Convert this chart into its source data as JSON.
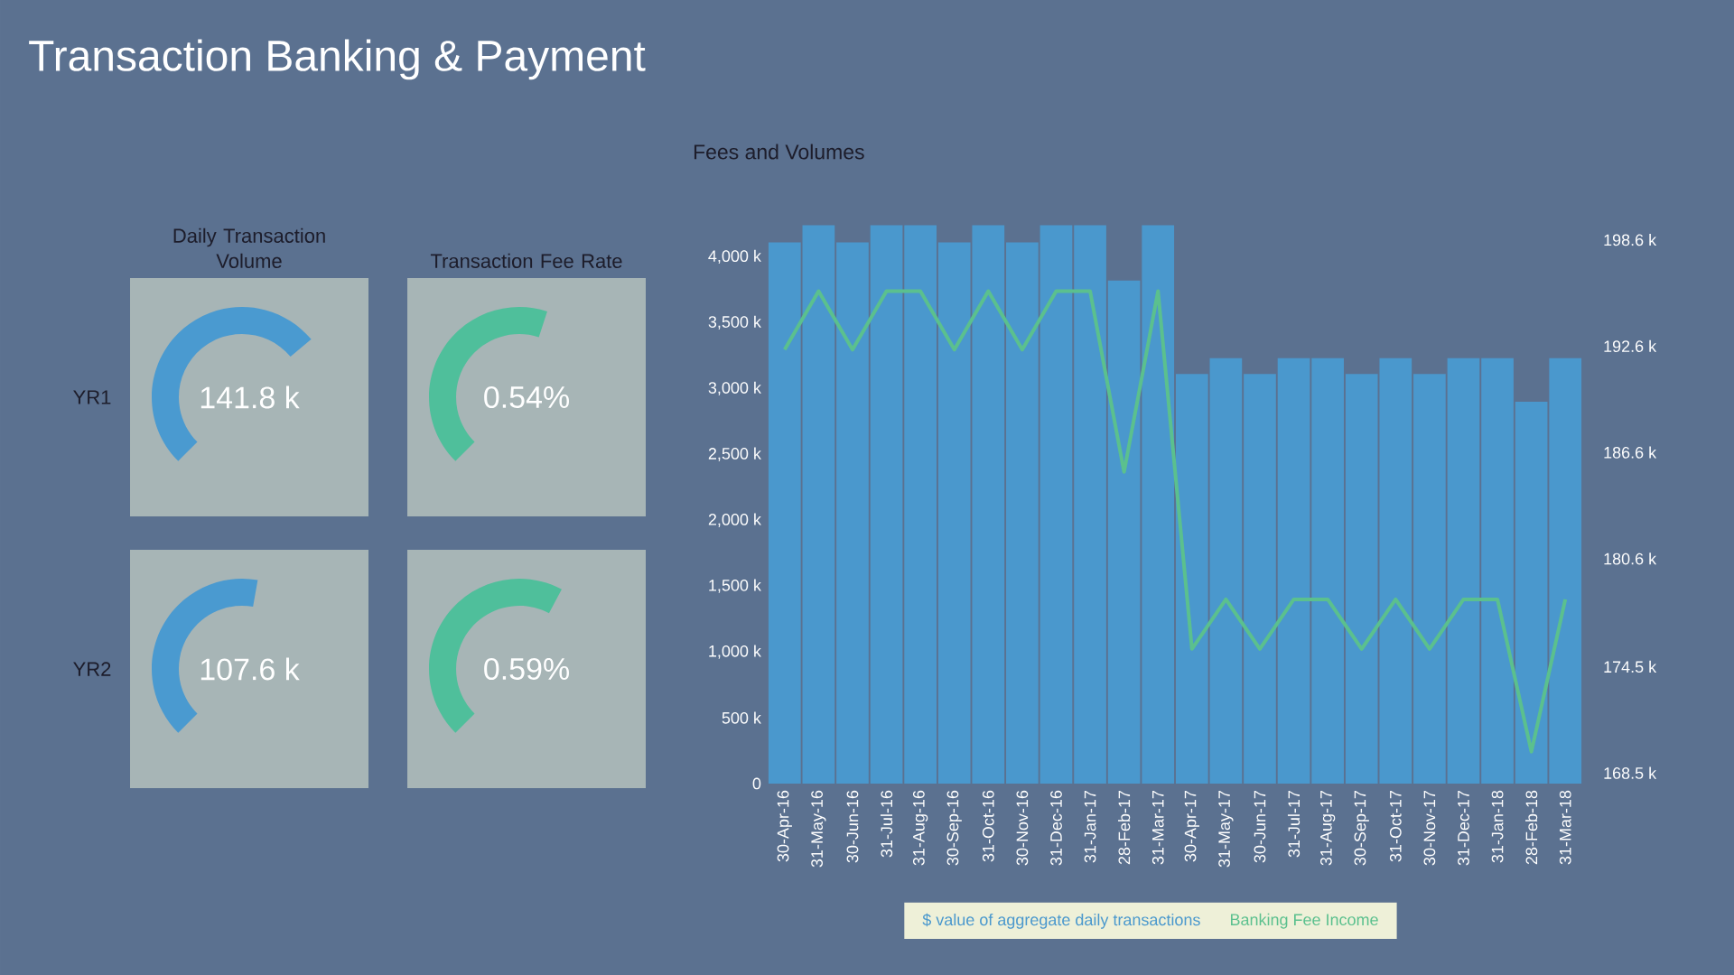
{
  "chart_data": [
    {
      "type": "other",
      "title": "Daily Transaction Volume",
      "ylabel": "YR1",
      "value_labels": [
        "141.8 k"
      ]
    },
    {
      "type": "other",
      "title": "Transaction Fee Rate",
      "value_labels": [
        "0.54%"
      ]
    },
    {
      "type": "other",
      "ylabel": "YR2",
      "value_labels": [
        "107.6 k"
      ]
    },
    {
      "type": "other",
      "value_labels": [
        "0.59%"
      ]
    },
    {
      "type": "bar",
      "title": "Fees and Volumes",
      "annotations": [
        "Transaction Banking & Payment"
      ],
      "categories": [
        "30-Apr-16",
        "31-May-16",
        "30-Jun-16",
        "31-Jul-16",
        "31-Aug-16",
        "30-Sep-16",
        "31-Oct-16",
        "30-Nov-16",
        "31-Dec-16",
        "31-Jan-17",
        "28-Feb-17",
        "31-Mar-17",
        "30-Apr-17",
        "31-May-17",
        "30-Jun-17",
        "31-Jul-17",
        "31-Aug-17",
        "30-Sep-17",
        "31-Oct-17",
        "30-Nov-17",
        "31-Dec-17",
        "31-Jan-18",
        "28-Feb-18",
        "31-Mar-18"
      ],
      "series": [
        {
          "name": "$ value of aggregate daily transactions",
          "color": "#4a98cd",
          "values": [
            4110,
            4240,
            4110,
            4240,
            4240,
            4110,
            4240,
            4110,
            4240,
            4240,
            3820,
            4240,
            3110,
            3230,
            3110,
            3230,
            3230,
            3110,
            3230,
            3110,
            3230,
            3230,
            2900,
            3230
          ]
        },
        {
          "name": "Banking Fee Income",
          "type": "line",
          "axis": "y2",
          "color": "#5bc08e",
          "values": [
            192.4,
            195.7,
            192.4,
            195.7,
            195.7,
            192.4,
            195.7,
            192.4,
            195.7,
            195.7,
            185.5,
            195.7,
            175.5,
            178.3,
            175.5,
            178.3,
            178.3,
            175.5,
            178.3,
            175.5,
            178.3,
            178.3,
            169.7,
            178.3
          ]
        }
      ],
      "ylim": [
        0,
        4250
      ],
      "yticks": [
        {
          "value": 0,
          "label": "0"
        },
        {
          "value": 500,
          "label": "500 k"
        },
        {
          "value": 1000,
          "label": "1,000 k"
        },
        {
          "value": 1500,
          "label": "1,500 k"
        },
        {
          "value": 2000,
          "label": "2,000 k"
        },
        {
          "value": 2500,
          "label": "2,500 k"
        },
        {
          "value": 3000,
          "label": "3,000 k"
        },
        {
          "value": 3500,
          "label": "3,500 k"
        },
        {
          "value": 4000,
          "label": "4,000 k"
        }
      ],
      "y2lim": [
        167.9,
        199.5
      ],
      "y2ticks": [
        {
          "value": 168.5,
          "label": "168.5 k"
        },
        {
          "value": 174.5,
          "label": "174.5 k"
        },
        {
          "value": 180.6,
          "label": "180.6 k"
        },
        {
          "value": 186.6,
          "label": "186.6 k"
        },
        {
          "value": 192.6,
          "label": "192.6 k"
        },
        {
          "value": 198.6,
          "label": "198.6 k"
        }
      ],
      "legend": "bottom"
    }
  ]
}
